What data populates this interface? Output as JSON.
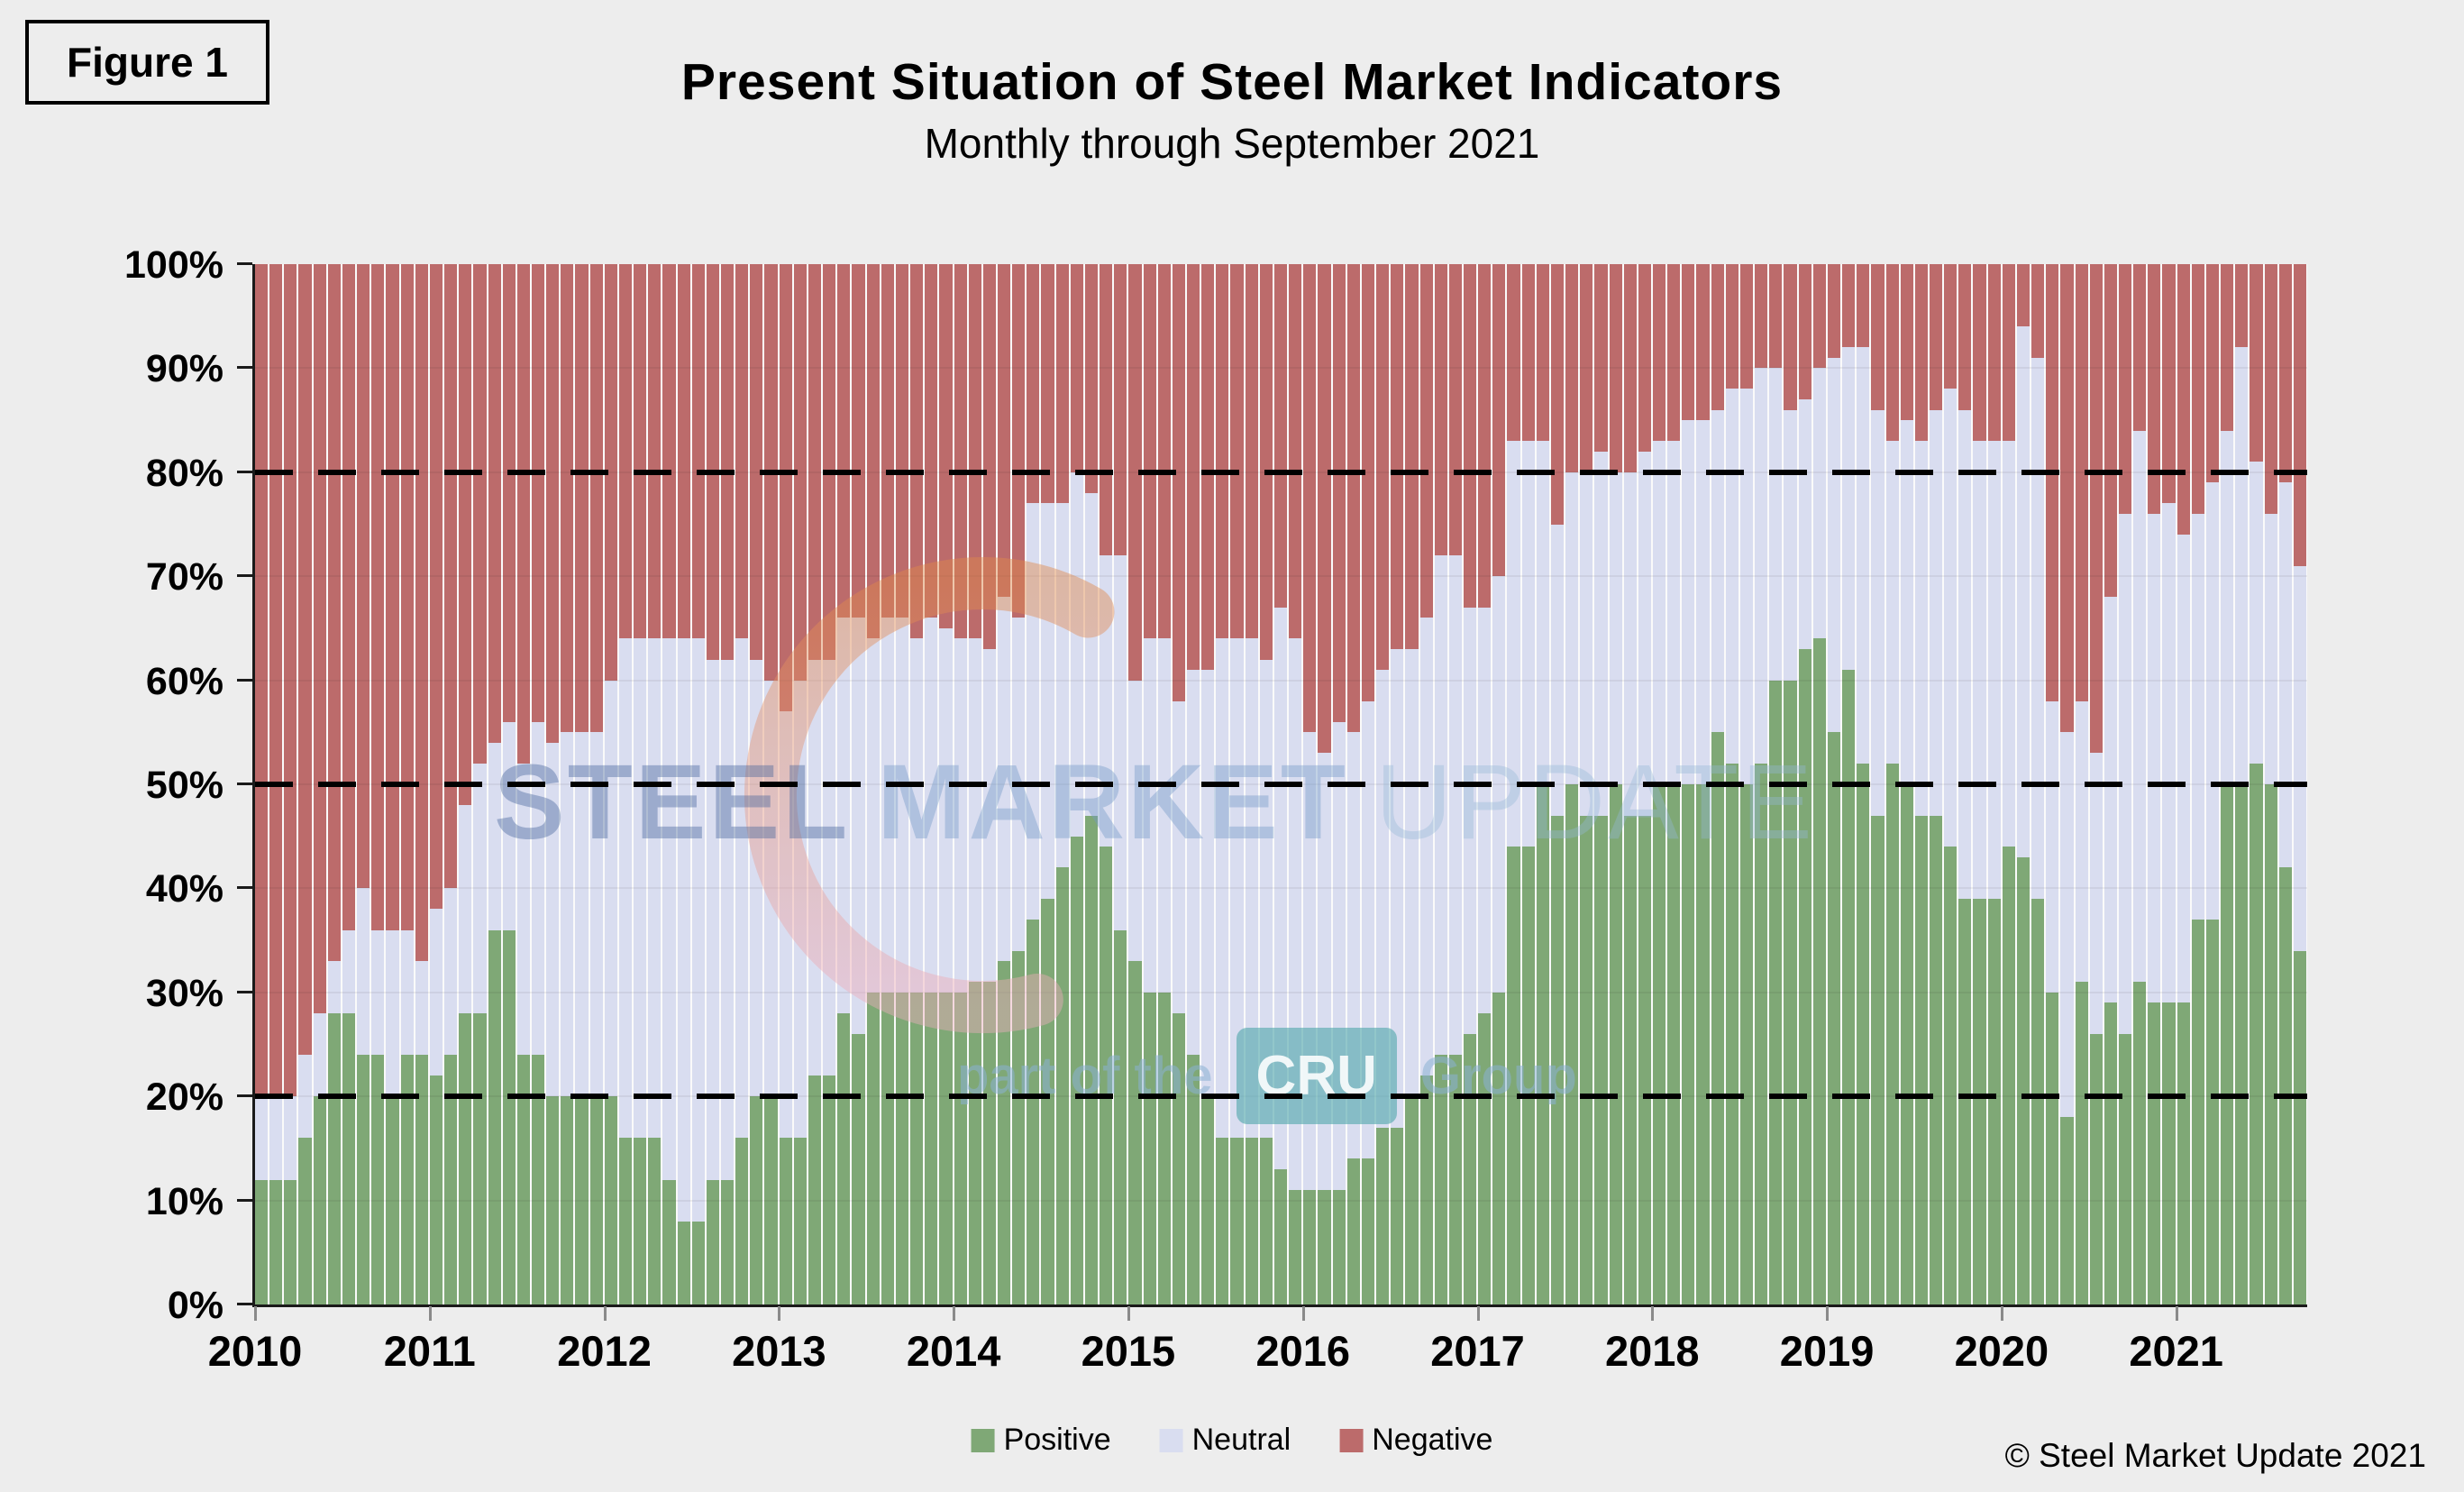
{
  "figure_label": "Figure 1",
  "header": {
    "title": "Present Situation of Steel Market Indicators",
    "subtitle": "Monthly through September 2021"
  },
  "watermark": {
    "steel": "STEEL",
    "market": "MARKET",
    "update": "UPDATE",
    "part_of_the": "part of the",
    "cru": "CRU",
    "group": "Group"
  },
  "footer": {
    "copyright": "© Steel Market Update 2021"
  },
  "legend": [
    {
      "label": "Positive",
      "color": "#7FA876"
    },
    {
      "label": "Neutral",
      "color": "#D9DDF0"
    },
    {
      "label": "Negative",
      "color": "#BC6B6B"
    }
  ],
  "chart_data": {
    "type": "bar",
    "stacked": true,
    "unit": "percent",
    "title": "Present Situation of Steel Market Indicators",
    "subtitle": "Monthly through September 2021",
    "xlabel": "",
    "ylabel": "",
    "ylim": [
      0,
      100
    ],
    "grid": "faint horizontal every 10%",
    "legend_position": "bottom-center",
    "x_start": "2010-01",
    "x_end": "2021-09",
    "frequency": "monthly",
    "x_year_ticks": [
      "2010",
      "2011",
      "2012",
      "2013",
      "2014",
      "2015",
      "2016",
      "2017",
      "2018",
      "2019",
      "2020",
      "2021"
    ],
    "y_ticks": [
      "0%",
      "10%",
      "20%",
      "30%",
      "40%",
      "50%",
      "60%",
      "70%",
      "80%",
      "90%",
      "100%"
    ],
    "reference_lines_pct": [
      20,
      50,
      80
    ],
    "series": [
      {
        "name": "Positive",
        "color": "#7FA876",
        "values": [
          12,
          12,
          12,
          16,
          20,
          28,
          28,
          24,
          24,
          20,
          24,
          24,
          22,
          24,
          28,
          28,
          36,
          36,
          24,
          24,
          20,
          20,
          20,
          20,
          20,
          16,
          16,
          16,
          12,
          8,
          8,
          12,
          12,
          16,
          20,
          20,
          16,
          16,
          22,
          22,
          28,
          26,
          30,
          30,
          30,
          30,
          30,
          30,
          30,
          31,
          31,
          33,
          34,
          37,
          39,
          42,
          45,
          47,
          44,
          36,
          33,
          30,
          30,
          28,
          24,
          20,
          16,
          16,
          16,
          16,
          13,
          11,
          11,
          11,
          11,
          14,
          14,
          17,
          17,
          20,
          22,
          24,
          24,
          26,
          28,
          30,
          44,
          44,
          50,
          47,
          50,
          47,
          47,
          50,
          47,
          47,
          50,
          50,
          50,
          50,
          55,
          52,
          50,
          52,
          60,
          60,
          63,
          64,
          55,
          61,
          52,
          47,
          52,
          50,
          47,
          47,
          44,
          39,
          39,
          39,
          44,
          43,
          39,
          30,
          18,
          31,
          26,
          29,
          26,
          31,
          29,
          29,
          29,
          37,
          37,
          50,
          50,
          52,
          50,
          42,
          34
        ]
      },
      {
        "name": "Neutral",
        "color": "#D9DDF0",
        "values": [
          8,
          8,
          8,
          8,
          8,
          5,
          8,
          16,
          12,
          16,
          12,
          9,
          16,
          16,
          20,
          24,
          18,
          20,
          28,
          32,
          34,
          35,
          35,
          35,
          40,
          48,
          48,
          48,
          52,
          56,
          56,
          50,
          50,
          48,
          42,
          40,
          41,
          44,
          40,
          40,
          38,
          40,
          34,
          36,
          36,
          34,
          36,
          35,
          34,
          33,
          32,
          35,
          32,
          40,
          38,
          35,
          35,
          31,
          28,
          36,
          27,
          34,
          34,
          30,
          37,
          41,
          48,
          48,
          48,
          46,
          54,
          53,
          44,
          42,
          45,
          41,
          44,
          44,
          46,
          43,
          44,
          48,
          48,
          41,
          39,
          40,
          39,
          39,
          33,
          28,
          30,
          33,
          35,
          30,
          33,
          35,
          33,
          33,
          35,
          35,
          31,
          36,
          38,
          38,
          30,
          26,
          24,
          26,
          36,
          31,
          40,
          39,
          31,
          35,
          36,
          39,
          44,
          47,
          44,
          44,
          39,
          51,
          52,
          28,
          37,
          27,
          27,
          39,
          50,
          53,
          47,
          48,
          45,
          39,
          42,
          34,
          42,
          29,
          26,
          37,
          37
        ]
      },
      {
        "name": "Negative",
        "color": "#BC6B6B",
        "values": [
          80,
          80,
          80,
          76,
          72,
          67,
          64,
          60,
          64,
          64,
          64,
          67,
          62,
          60,
          52,
          48,
          46,
          44,
          48,
          44,
          46,
          45,
          45,
          45,
          40,
          36,
          36,
          36,
          36,
          36,
          36,
          38,
          38,
          36,
          38,
          40,
          43,
          40,
          38,
          38,
          34,
          34,
          36,
          34,
          34,
          36,
          34,
          35,
          36,
          36,
          37,
          32,
          34,
          23,
          23,
          23,
          20,
          22,
          28,
          28,
          40,
          36,
          36,
          42,
          39,
          39,
          36,
          36,
          36,
          38,
          33,
          36,
          45,
          47,
          44,
          45,
          42,
          39,
          37,
          37,
          34,
          28,
          28,
          33,
          33,
          30,
          17,
          17,
          17,
          25,
          20,
          20,
          18,
          20,
          20,
          18,
          17,
          17,
          15,
          15,
          14,
          12,
          12,
          10,
          10,
          14,
          13,
          10,
          9,
          8,
          8,
          14,
          17,
          15,
          17,
          14,
          12,
          14,
          17,
          17,
          17,
          6,
          9,
          42,
          45,
          42,
          47,
          32,
          24,
          16,
          24,
          23,
          26,
          24,
          21,
          16,
          8,
          19,
          24,
          21,
          29
        ]
      }
    ]
  }
}
